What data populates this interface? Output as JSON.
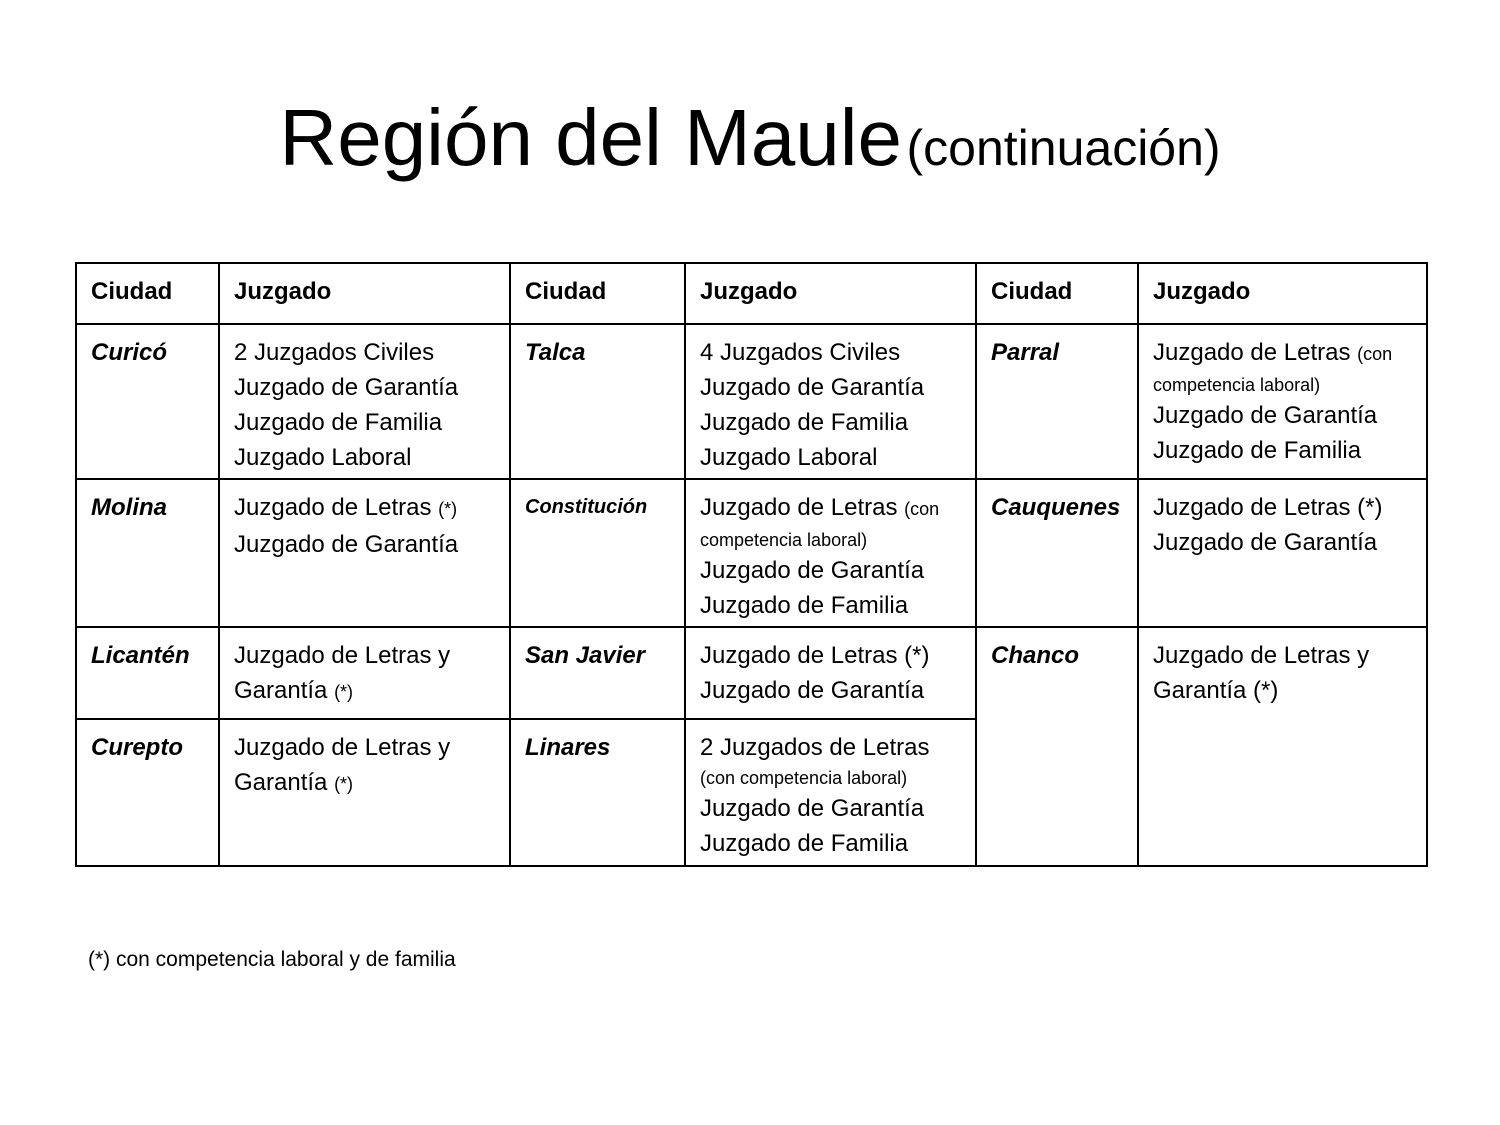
{
  "title": {
    "main": "Región del Maule",
    "sub": "(continuación)"
  },
  "table": {
    "headers": [
      "Ciudad",
      "Juzgado",
      "Ciudad",
      "Juzgado",
      "Ciudad",
      "Juzgado"
    ],
    "rows": [
      [
        {
          "city": "Curicó",
          "lines": [
            [
              {
                "t": "2 Juzgados Civiles"
              }
            ],
            [
              {
                "t": "Juzgado de Garantía"
              }
            ],
            [
              {
                "t": "Juzgado de Familia"
              }
            ],
            [
              {
                "t": "Juzgado Laboral"
              }
            ]
          ]
        },
        {
          "city": "Talca",
          "lines": [
            [
              {
                "t": "4 Juzgados Civiles"
              }
            ],
            [
              {
                "t": "Juzgado de Garantía"
              }
            ],
            [
              {
                "t": "Juzgado de Familia"
              }
            ],
            [
              {
                "t": "Juzgado Laboral"
              }
            ]
          ]
        },
        {
          "city": "Parral",
          "lines": [
            [
              {
                "t": "Juzgado de Letras "
              },
              {
                "t": "(con",
                "s": 1
              }
            ],
            [
              {
                "t": "competencia laboral)",
                "s": 1
              }
            ],
            [
              {
                "t": "Juzgado de Garantía"
              }
            ],
            [
              {
                "t": "Juzgado de Familia"
              }
            ]
          ]
        }
      ],
      [
        {
          "city": "Molina",
          "lines": [
            [
              {
                "t": "Juzgado de Letras "
              },
              {
                "t": "(*)",
                "s": 1
              }
            ],
            [
              {
                "t": "Juzgado de Garantía"
              }
            ]
          ]
        },
        {
          "city": "Constitución",
          "small": true,
          "lines": [
            [
              {
                "t": "Juzgado de Letras "
              },
              {
                "t": "(con",
                "s": 1
              }
            ],
            [
              {
                "t": "competencia laboral)",
                "s": 1
              }
            ],
            [
              {
                "t": "Juzgado de Garantía"
              }
            ],
            [
              {
                "t": "Juzgado de Familia"
              }
            ]
          ]
        },
        {
          "city": "Cauquenes",
          "lines": [
            [
              {
                "t": "Juzgado de Letras (*)"
              }
            ],
            [
              {
                "t": "Juzgado de Garantía"
              }
            ]
          ]
        }
      ],
      [
        {
          "city": "Licantén",
          "lines": [
            [
              {
                "t": "Juzgado de Letras y"
              }
            ],
            [
              {
                "t": "Garantía "
              },
              {
                "t": "(*)",
                "s": 1
              }
            ]
          ]
        },
        {
          "city": "San Javier",
          "lines": [
            [
              {
                "t": "Juzgado de Letras (*)"
              }
            ],
            [
              {
                "t": "Juzgado de Garantía"
              }
            ]
          ]
        },
        {
          "city": "Chanco",
          "rowspan": 2,
          "lines": [
            [
              {
                "t": "Juzgado de Letras y"
              }
            ],
            [
              {
                "t": "Garantía (*)"
              }
            ]
          ]
        }
      ],
      [
        {
          "city": "Curepto",
          "lines": [
            [
              {
                "t": "Juzgado de Letras y"
              }
            ],
            [
              {
                "t": "Garantía "
              },
              {
                "t": "(*)",
                "s": 1
              }
            ]
          ]
        },
        {
          "city": "Linares",
          "lines": [
            [
              {
                "t": "2 Juzgados de Letras"
              }
            ],
            [
              {
                "t": "(con competencia laboral)",
                "s": 1
              }
            ],
            [
              {
                "t": "Juzgado de Garantía"
              }
            ],
            [
              {
                "t": "Juzgado de Familia"
              }
            ]
          ]
        }
      ]
    ]
  },
  "footnote": "(*) con competencia laboral y de familia"
}
